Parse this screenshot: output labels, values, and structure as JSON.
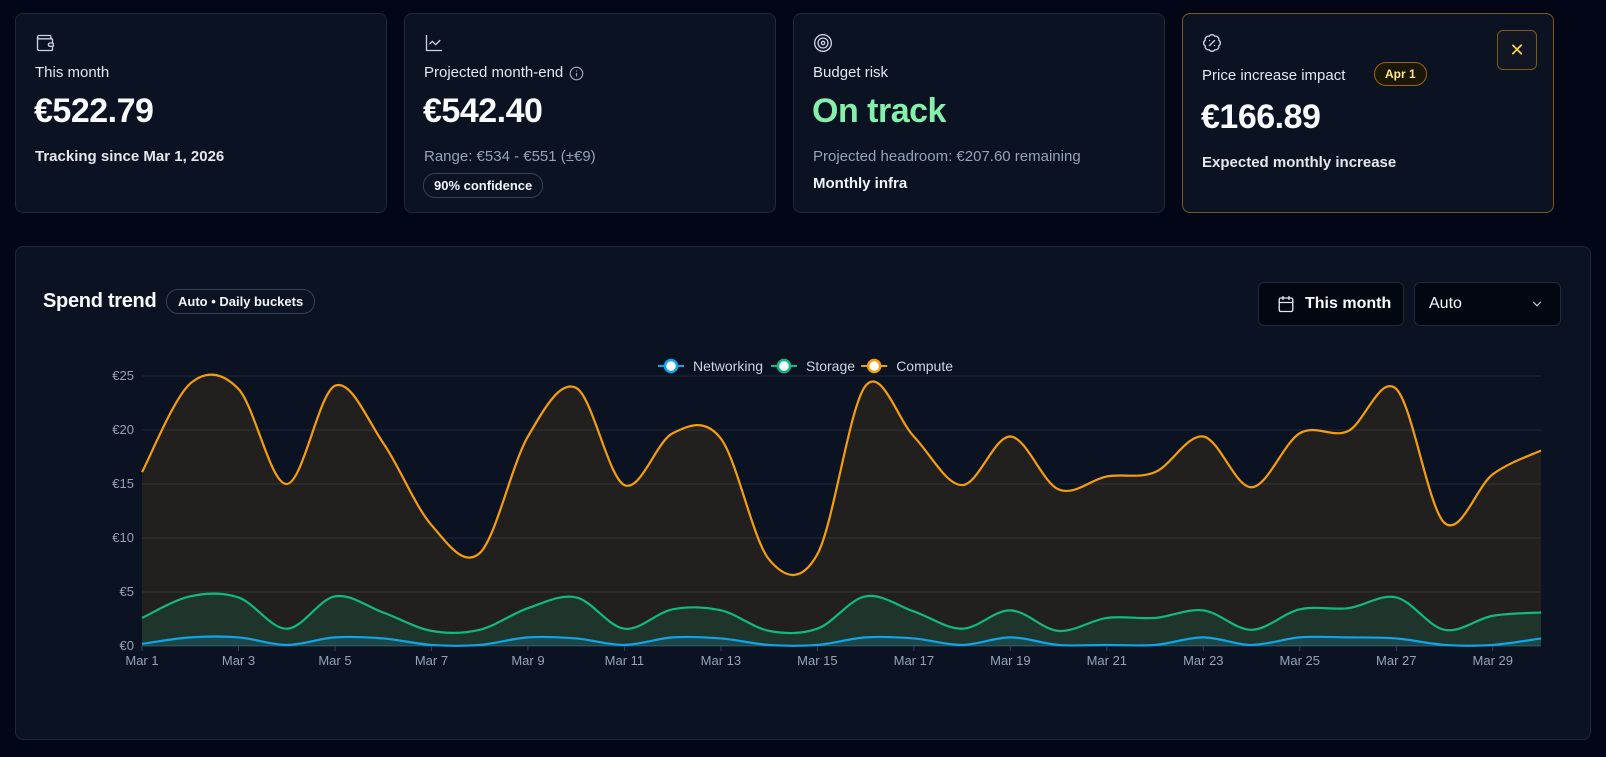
{
  "cards": {
    "this_month": {
      "icon": "wallet-icon",
      "title": "This month",
      "value": "€522.79",
      "sub": "Tracking since Mar 1, 2026"
    },
    "projected": {
      "icon": "chart-line-icon",
      "title": "Projected month-end",
      "value": "€542.40",
      "sub": "Range: €534 - €551 (±€9)",
      "pill": "90% confidence"
    },
    "budget": {
      "icon": "target-icon",
      "title": "Budget risk",
      "value": "On track",
      "sub": "Projected headroom: €207.60 remaining",
      "sub2": "Monthly infra"
    },
    "price": {
      "icon": "percent-badge-icon",
      "title": "Price increase impact",
      "badge": "Apr 1",
      "value": "€166.89",
      "sub": "Expected monthly increase",
      "close": "✕"
    }
  },
  "trend": {
    "title": "Spend trend",
    "badge": "Auto • Daily buckets",
    "range_button": "This month",
    "bucket_select": "Auto"
  },
  "chart_data": {
    "type": "area",
    "x": [
      "Mar 1",
      "Mar 2",
      "Mar 3",
      "Mar 4",
      "Mar 5",
      "Mar 6",
      "Mar 7",
      "Mar 8",
      "Mar 9",
      "Mar 10",
      "Mar 11",
      "Mar 12",
      "Mar 13",
      "Mar 14",
      "Mar 15",
      "Mar 16",
      "Mar 17",
      "Mar 18",
      "Mar 19",
      "Mar 20",
      "Mar 21",
      "Mar 22",
      "Mar 23",
      "Mar 24",
      "Mar 25",
      "Mar 26",
      "Mar 27",
      "Mar 28",
      "Mar 29",
      "Mar 30"
    ],
    "x_tick_labels": [
      "Mar 1",
      "Mar 3",
      "Mar 5",
      "Mar 7",
      "Mar 9",
      "Mar 11",
      "Mar 13",
      "Mar 15",
      "Mar 17",
      "Mar 19",
      "Mar 21",
      "Mar 23",
      "Mar 25",
      "Mar 27",
      "Mar 29"
    ],
    "y_ticks": [
      "€0",
      "€5",
      "€10",
      "€15",
      "€20",
      "€25"
    ],
    "ylim": [
      0,
      25
    ],
    "series": [
      {
        "name": "Networking",
        "color": "#0ea5e9",
        "values": [
          0.2,
          0.8,
          0.8,
          0.1,
          0.8,
          0.7,
          0.1,
          0.1,
          0.8,
          0.7,
          0.1,
          0.8,
          0.7,
          0.1,
          0.1,
          0.8,
          0.7,
          0.1,
          0.8,
          0.1,
          0.1,
          0.1,
          0.8,
          0.1,
          0.8,
          0.8,
          0.7,
          0.1,
          0.1,
          0.7
        ]
      },
      {
        "name": "Storage",
        "color": "#10b981",
        "values": [
          2.6,
          4.6,
          4.5,
          1.6,
          4.6,
          3.1,
          1.4,
          1.5,
          3.5,
          4.5,
          1.6,
          3.4,
          3.3,
          1.4,
          1.6,
          4.6,
          3.2,
          1.6,
          3.3,
          1.4,
          2.6,
          2.6,
          3.3,
          1.5,
          3.4,
          3.5,
          4.5,
          1.5,
          2.8,
          3.1
        ]
      },
      {
        "name": "Compute",
        "color": "#f59e0b",
        "values": [
          16.1,
          24.3,
          23.8,
          15.0,
          24.1,
          18.8,
          11.2,
          8.6,
          19.4,
          23.9,
          14.9,
          19.7,
          19.2,
          8.0,
          8.5,
          24.1,
          19.4,
          14.9,
          19.4,
          14.5,
          15.7,
          16.1,
          19.4,
          14.7,
          19.7,
          19.9,
          23.8,
          11.4,
          15.9,
          18.1
        ]
      }
    ],
    "grid": true,
    "legend": "top-center"
  }
}
